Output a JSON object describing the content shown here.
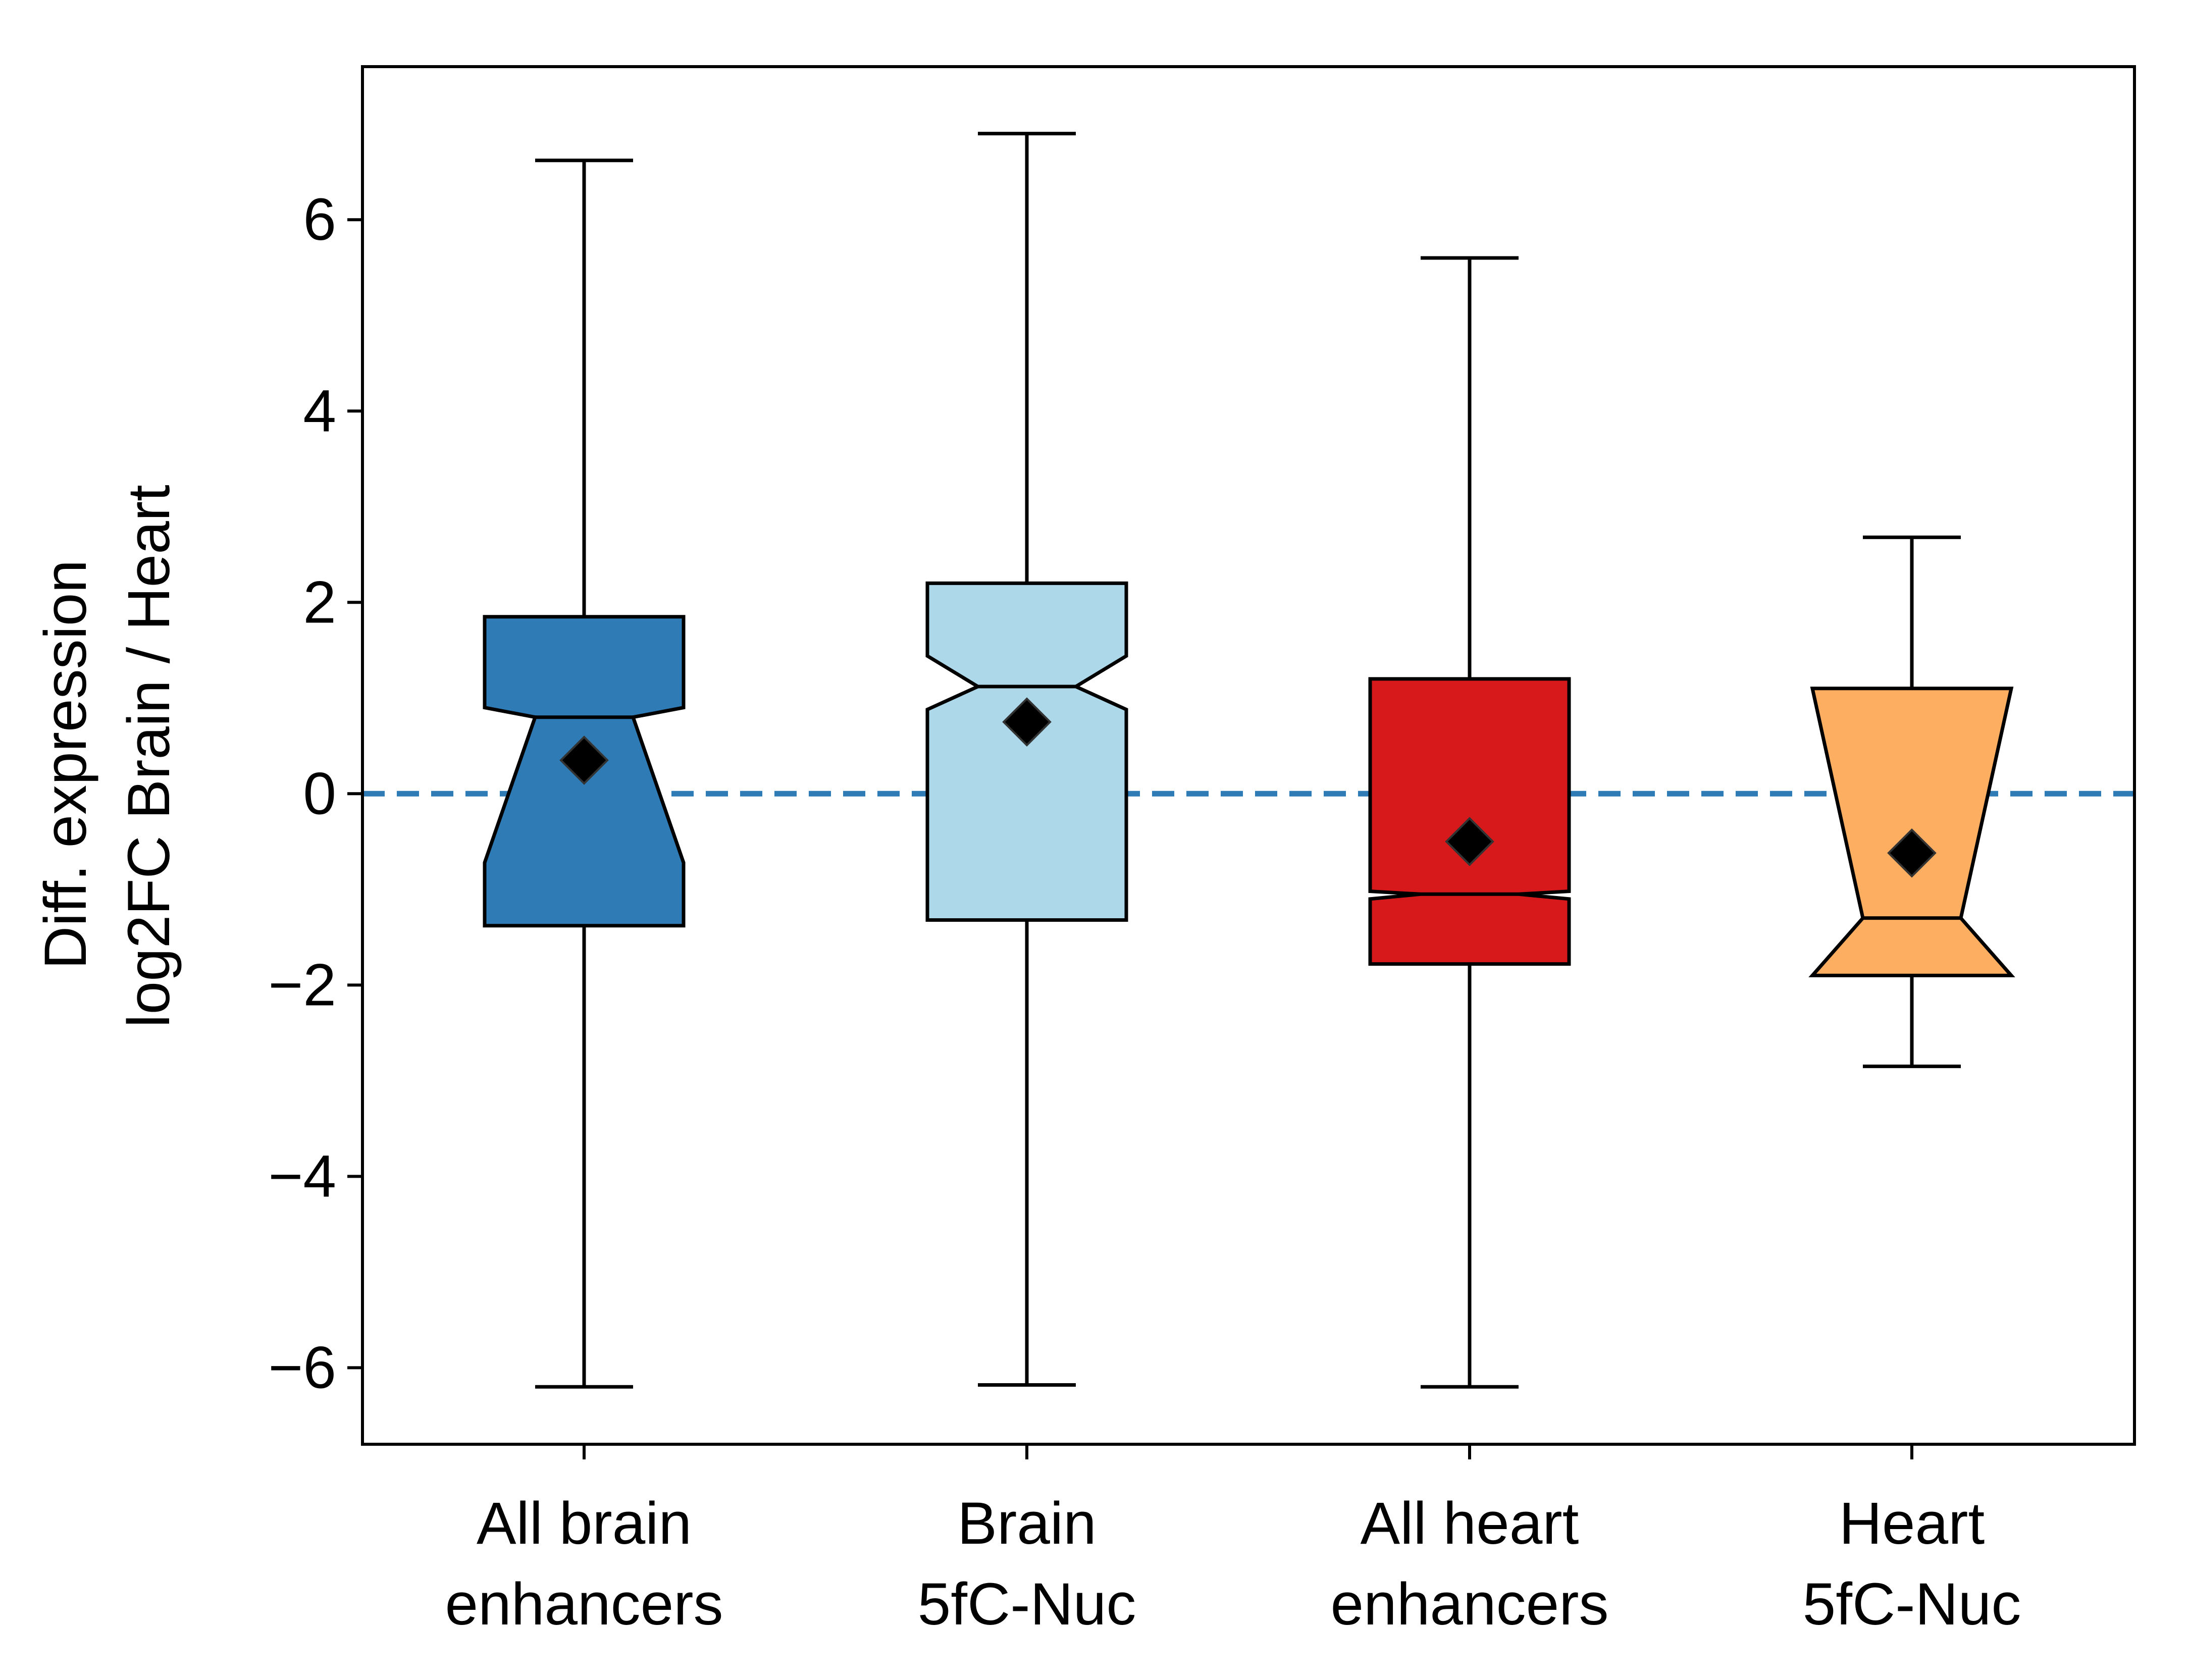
{
  "chart_data": {
    "type": "boxplot",
    "notched": true,
    "ylabel": [
      "Diff. expression",
      "log2FC Brain / Heart"
    ],
    "ylim": [
      -6.8,
      7.6
    ],
    "yticks": [
      6,
      4,
      2,
      0,
      -2,
      -4,
      -6
    ],
    "ytick_labels": [
      "6",
      "4",
      "2",
      "0",
      "−2",
      "−4",
      "−6"
    ],
    "reference_line": {
      "y": 0,
      "style": "dashed",
      "color": "#2e7bb6"
    },
    "categories": [
      [
        "All brain",
        "enhancers"
      ],
      [
        "Brain",
        "5fC-Nuc"
      ],
      [
        "All heart",
        "enhancers"
      ],
      [
        "Heart",
        "5fC-Nuc"
      ]
    ],
    "boxes": [
      {
        "whisker_low": -6.2,
        "q1": -1.38,
        "notch_low": -0.72,
        "median": 0.8,
        "notch_high": 0.9,
        "q3": 1.85,
        "whisker_high": 6.62,
        "mean": 0.35,
        "color": "#2e7bb6"
      },
      {
        "whisker_low": -6.18,
        "q1": -1.32,
        "notch_low": 0.88,
        "median": 1.12,
        "notch_high": 1.44,
        "q3": 2.2,
        "whisker_high": 6.9,
        "mean": 0.75,
        "color": "#acd8e9"
      },
      {
        "whisker_low": -6.2,
        "q1": -1.78,
        "notch_low": -1.1,
        "median": -1.05,
        "notch_high": -1.02,
        "q3": 1.2,
        "whisker_high": 5.6,
        "mean": -0.5,
        "color": "#d7191c"
      },
      {
        "whisker_low": -2.85,
        "q1": -1.9,
        "notch_low": -1.9,
        "median": -1.3,
        "notch_high": 1.1,
        "q3": 1.1,
        "whisker_high": 2.68,
        "mean": -0.62,
        "color": "#fdae61"
      }
    ],
    "mean_marker": "diamond",
    "grid": false
  }
}
